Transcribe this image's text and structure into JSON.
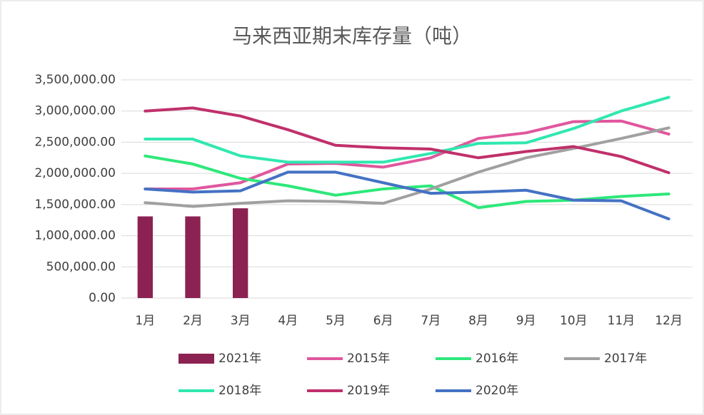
{
  "chart_data": {
    "type": "bar-line",
    "title": "马来西亚期末库存量（吨）",
    "categories": [
      "1月",
      "2月",
      "3月",
      "4月",
      "5月",
      "6月",
      "7月",
      "8月",
      "9月",
      "10月",
      "11月",
      "12月"
    ],
    "ylim": [
      0,
      3500000
    ],
    "yticks": [
      {
        "value": 0,
        "label": "0.00"
      },
      {
        "value": 500000,
        "label": "500,000.00"
      },
      {
        "value": 1000000,
        "label": "1,000,000.00"
      },
      {
        "value": 1500000,
        "label": "1,500,000.00"
      },
      {
        "value": 2000000,
        "label": "2,000,000.00"
      },
      {
        "value": 2500000,
        "label": "2,500,000.00"
      },
      {
        "value": 3000000,
        "label": "3,000,000.00"
      },
      {
        "value": 3500000,
        "label": "3,500,000.00"
      }
    ],
    "grid": true,
    "series": [
      {
        "name": "2021年",
        "kind": "bar",
        "color": "#8b2252",
        "values": [
          1310000,
          1310000,
          1440000,
          null,
          null,
          null,
          null,
          null,
          null,
          null,
          null,
          null
        ]
      },
      {
        "name": "2015年",
        "kind": "line",
        "color": "#e0579d",
        "values": [
          1750000,
          1750000,
          1850000,
          2150000,
          2160000,
          2100000,
          2250000,
          2560000,
          2650000,
          2830000,
          2840000,
          2630000
        ]
      },
      {
        "name": "2016年",
        "kind": "line",
        "color": "#2ee87a",
        "values": [
          2280000,
          2150000,
          1920000,
          1800000,
          1650000,
          1750000,
          1800000,
          1450000,
          1550000,
          1570000,
          1630000,
          1670000
        ]
      },
      {
        "name": "2017年",
        "kind": "line",
        "color": "#a0a0a0",
        "values": [
          1530000,
          1470000,
          1520000,
          1560000,
          1550000,
          1520000,
          1750000,
          2020000,
          2250000,
          2400000,
          2560000,
          2730000
        ]
      },
      {
        "name": "2018年",
        "kind": "line",
        "color": "#30e8b0",
        "values": [
          2550000,
          2550000,
          2280000,
          2180000,
          2180000,
          2180000,
          2320000,
          2480000,
          2490000,
          2720000,
          3000000,
          3220000
        ]
      },
      {
        "name": "2019年",
        "kind": "line",
        "color": "#c0306b",
        "values": [
          3000000,
          3050000,
          2920000,
          2700000,
          2450000,
          2410000,
          2390000,
          2250000,
          2350000,
          2430000,
          2270000,
          2010000
        ]
      },
      {
        "name": "2020年",
        "kind": "line",
        "color": "#4472c4",
        "values": [
          1750000,
          1700000,
          1720000,
          2020000,
          2020000,
          1850000,
          1680000,
          1700000,
          1730000,
          1570000,
          1560000,
          1270000
        ]
      }
    ]
  }
}
